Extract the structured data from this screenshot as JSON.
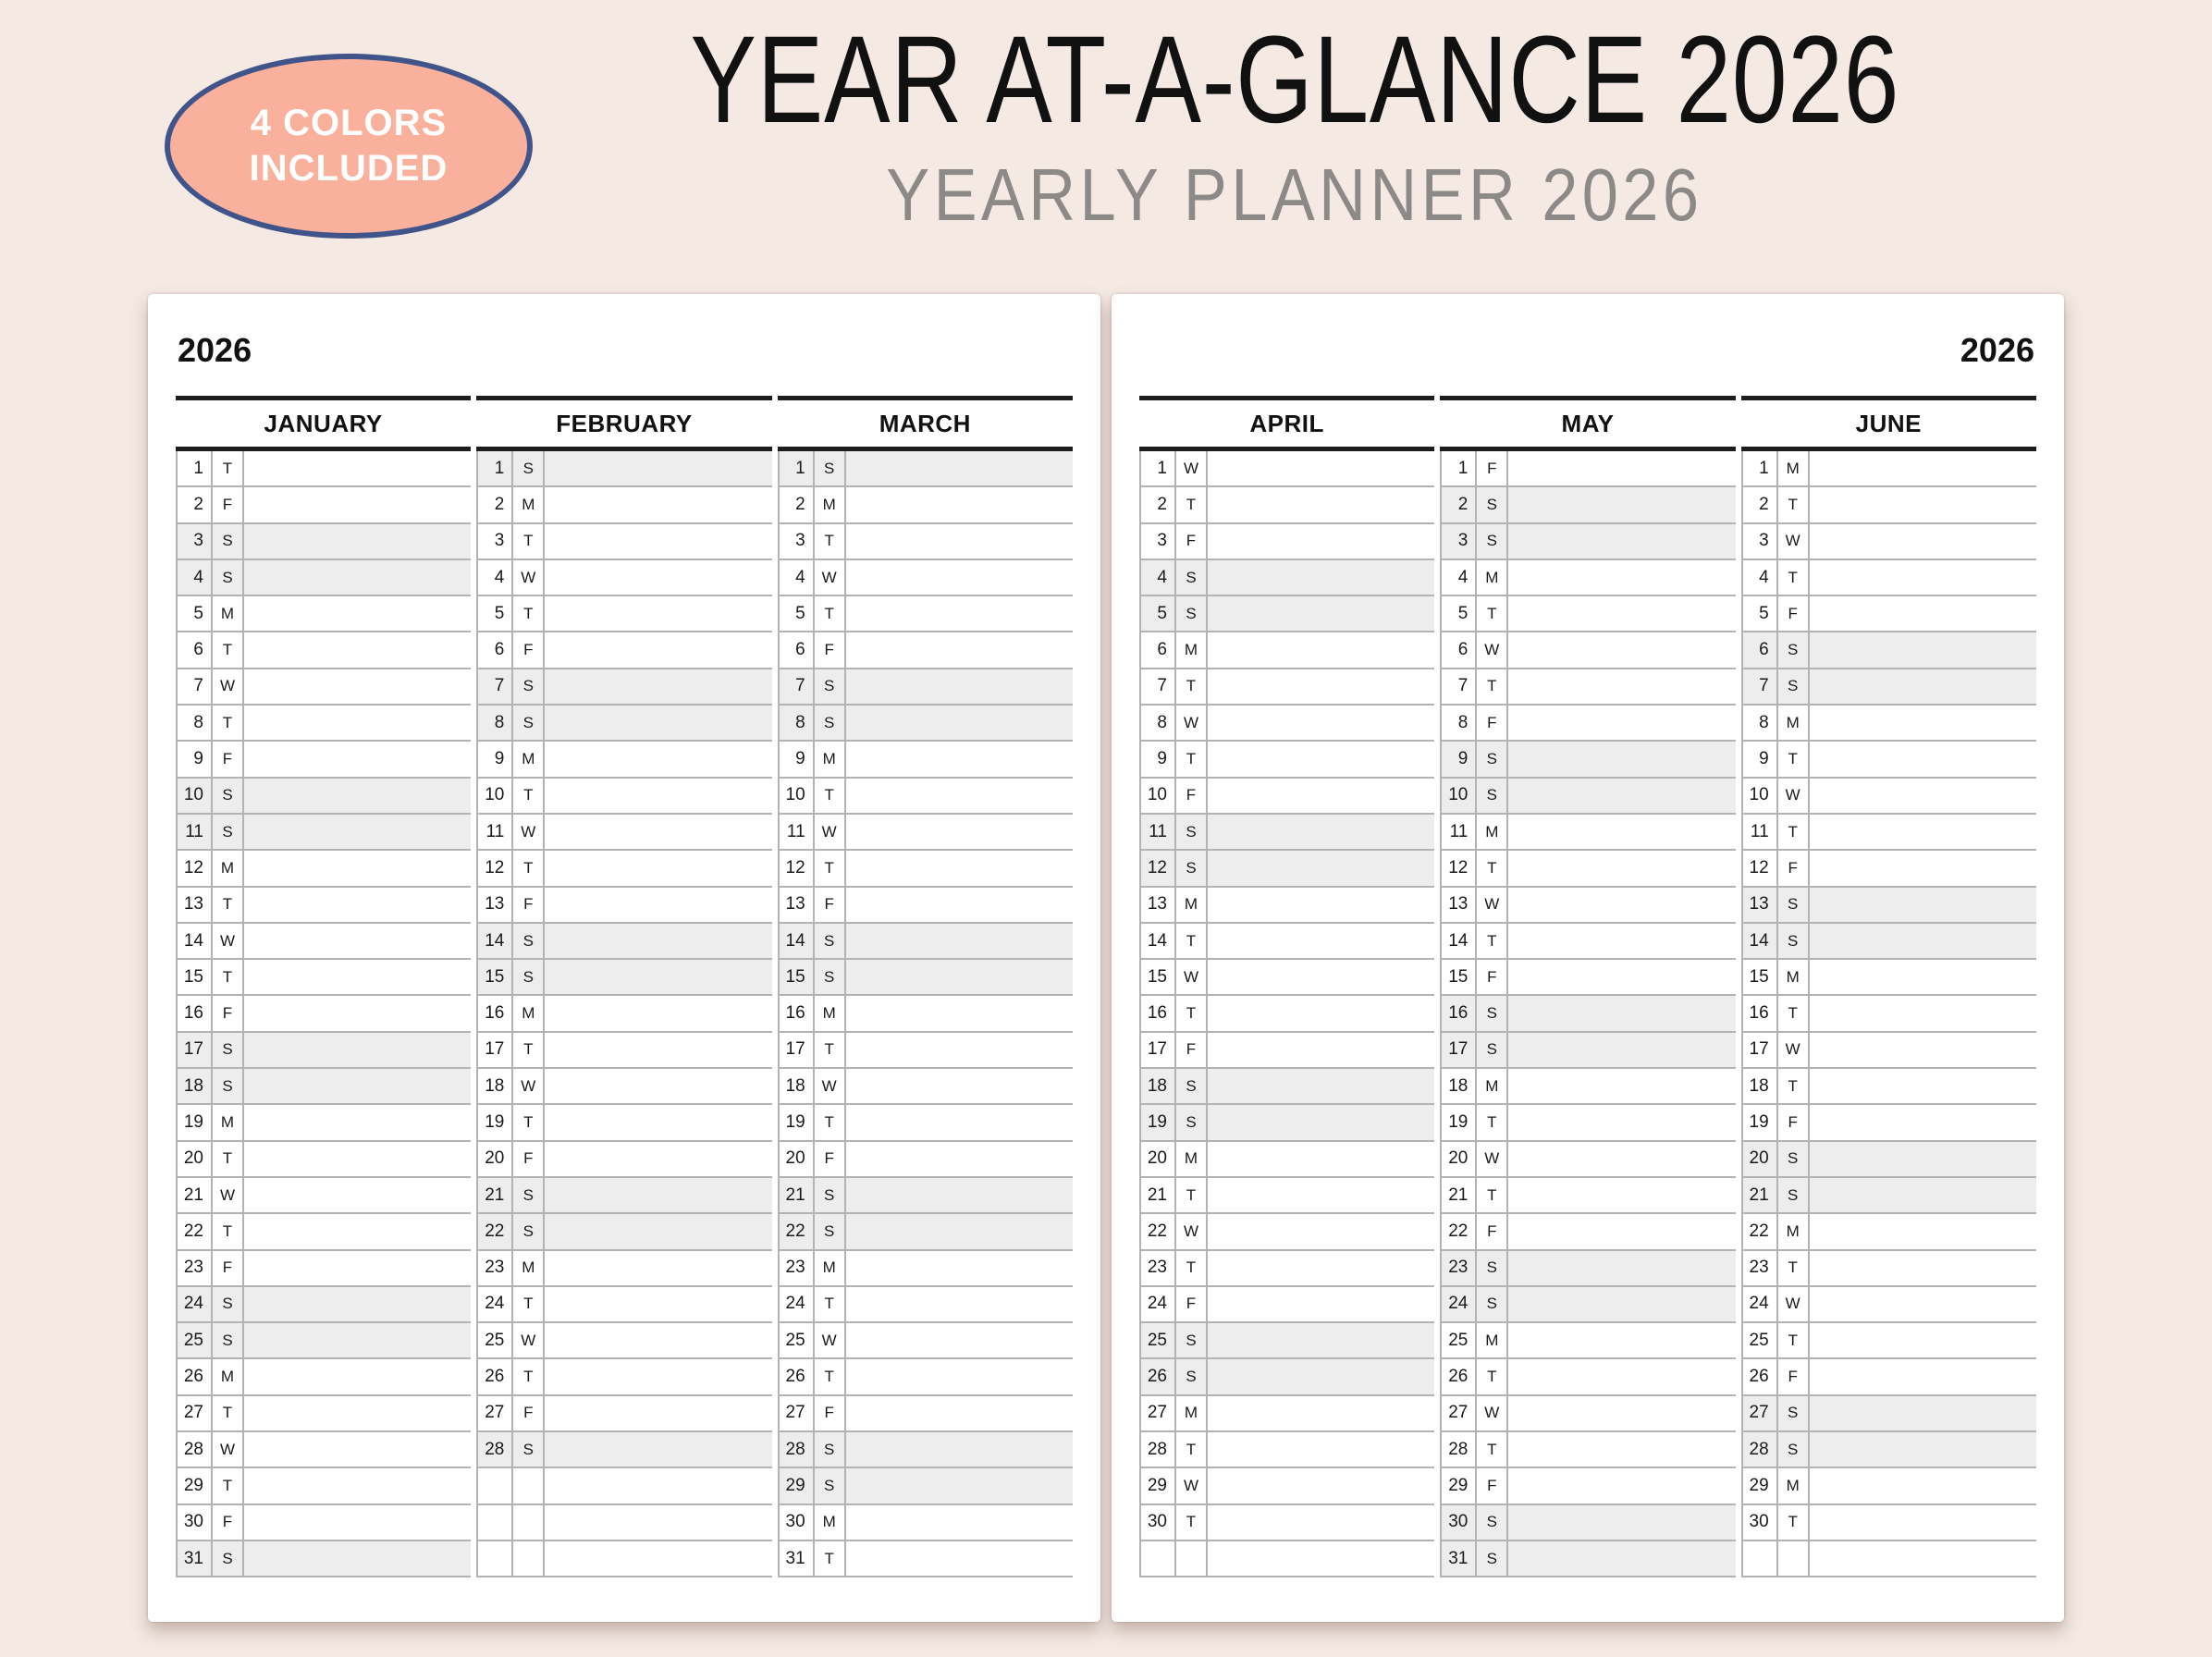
{
  "badge": {
    "line1": "4 COLORS",
    "line2": "INCLUDED"
  },
  "header": {
    "title": "YEAR AT-A-GLANCE 2026",
    "subtitle": "YEARLY PLANNER 2026"
  },
  "layout": {
    "rows_per_month": 31
  },
  "colors": {
    "background": "#f4e9e3",
    "page": "#ffffff",
    "badge_fill": "#f9b19d",
    "badge_border": "#41548a",
    "title": "#111111",
    "subtitle": "#8d8987",
    "weekend_shade": "#ededed",
    "grid_line": "#b3b3b3",
    "thick_line": "#1d1d1d"
  },
  "pages": [
    {
      "year": "2026",
      "year_align": "left",
      "months": [
        {
          "name": "JANUARY",
          "days": [
            [
              "1",
              "T"
            ],
            [
              "2",
              "F"
            ],
            [
              "3",
              "S"
            ],
            [
              "4",
              "S"
            ],
            [
              "5",
              "M"
            ],
            [
              "6",
              "T"
            ],
            [
              "7",
              "W"
            ],
            [
              "8",
              "T"
            ],
            [
              "9",
              "F"
            ],
            [
              "10",
              "S"
            ],
            [
              "11",
              "S"
            ],
            [
              "12",
              "M"
            ],
            [
              "13",
              "T"
            ],
            [
              "14",
              "W"
            ],
            [
              "15",
              "T"
            ],
            [
              "16",
              "F"
            ],
            [
              "17",
              "S"
            ],
            [
              "18",
              "S"
            ],
            [
              "19",
              "M"
            ],
            [
              "20",
              "T"
            ],
            [
              "21",
              "W"
            ],
            [
              "22",
              "T"
            ],
            [
              "23",
              "F"
            ],
            [
              "24",
              "S"
            ],
            [
              "25",
              "S"
            ],
            [
              "26",
              "M"
            ],
            [
              "27",
              "T"
            ],
            [
              "28",
              "W"
            ],
            [
              "29",
              "T"
            ],
            [
              "30",
              "F"
            ],
            [
              "31",
              "S"
            ]
          ]
        },
        {
          "name": "FEBRUARY",
          "days": [
            [
              "1",
              "S"
            ],
            [
              "2",
              "M"
            ],
            [
              "3",
              "T"
            ],
            [
              "4",
              "W"
            ],
            [
              "5",
              "T"
            ],
            [
              "6",
              "F"
            ],
            [
              "7",
              "S"
            ],
            [
              "8",
              "S"
            ],
            [
              "9",
              "M"
            ],
            [
              "10",
              "T"
            ],
            [
              "11",
              "W"
            ],
            [
              "12",
              "T"
            ],
            [
              "13",
              "F"
            ],
            [
              "14",
              "S"
            ],
            [
              "15",
              "S"
            ],
            [
              "16",
              "M"
            ],
            [
              "17",
              "T"
            ],
            [
              "18",
              "W"
            ],
            [
              "19",
              "T"
            ],
            [
              "20",
              "F"
            ],
            [
              "21",
              "S"
            ],
            [
              "22",
              "S"
            ],
            [
              "23",
              "M"
            ],
            [
              "24",
              "T"
            ],
            [
              "25",
              "W"
            ],
            [
              "26",
              "T"
            ],
            [
              "27",
              "F"
            ],
            [
              "28",
              "S"
            ]
          ]
        },
        {
          "name": "MARCH",
          "days": [
            [
              "1",
              "S"
            ],
            [
              "2",
              "M"
            ],
            [
              "3",
              "T"
            ],
            [
              "4",
              "W"
            ],
            [
              "5",
              "T"
            ],
            [
              "6",
              "F"
            ],
            [
              "7",
              "S"
            ],
            [
              "8",
              "S"
            ],
            [
              "9",
              "M"
            ],
            [
              "10",
              "T"
            ],
            [
              "11",
              "W"
            ],
            [
              "12",
              "T"
            ],
            [
              "13",
              "F"
            ],
            [
              "14",
              "S"
            ],
            [
              "15",
              "S"
            ],
            [
              "16",
              "M"
            ],
            [
              "17",
              "T"
            ],
            [
              "18",
              "W"
            ],
            [
              "19",
              "T"
            ],
            [
              "20",
              "F"
            ],
            [
              "21",
              "S"
            ],
            [
              "22",
              "S"
            ],
            [
              "23",
              "M"
            ],
            [
              "24",
              "T"
            ],
            [
              "25",
              "W"
            ],
            [
              "26",
              "T"
            ],
            [
              "27",
              "F"
            ],
            [
              "28",
              "S"
            ],
            [
              "29",
              "S"
            ],
            [
              "30",
              "M"
            ],
            [
              "31",
              "T"
            ]
          ]
        }
      ]
    },
    {
      "year": "2026",
      "year_align": "right",
      "months": [
        {
          "name": "APRIL",
          "days": [
            [
              "1",
              "W"
            ],
            [
              "2",
              "T"
            ],
            [
              "3",
              "F"
            ],
            [
              "4",
              "S"
            ],
            [
              "5",
              "S"
            ],
            [
              "6",
              "M"
            ],
            [
              "7",
              "T"
            ],
            [
              "8",
              "W"
            ],
            [
              "9",
              "T"
            ],
            [
              "10",
              "F"
            ],
            [
              "11",
              "S"
            ],
            [
              "12",
              "S"
            ],
            [
              "13",
              "M"
            ],
            [
              "14",
              "T"
            ],
            [
              "15",
              "W"
            ],
            [
              "16",
              "T"
            ],
            [
              "17",
              "F"
            ],
            [
              "18",
              "S"
            ],
            [
              "19",
              "S"
            ],
            [
              "20",
              "M"
            ],
            [
              "21",
              "T"
            ],
            [
              "22",
              "W"
            ],
            [
              "23",
              "T"
            ],
            [
              "24",
              "F"
            ],
            [
              "25",
              "S"
            ],
            [
              "26",
              "S"
            ],
            [
              "27",
              "M"
            ],
            [
              "28",
              "T"
            ],
            [
              "29",
              "W"
            ],
            [
              "30",
              "T"
            ]
          ]
        },
        {
          "name": "MAY",
          "days": [
            [
              "1",
              "F"
            ],
            [
              "2",
              "S"
            ],
            [
              "3",
              "S"
            ],
            [
              "4",
              "M"
            ],
            [
              "5",
              "T"
            ],
            [
              "6",
              "W"
            ],
            [
              "7",
              "T"
            ],
            [
              "8",
              "F"
            ],
            [
              "9",
              "S"
            ],
            [
              "10",
              "S"
            ],
            [
              "11",
              "M"
            ],
            [
              "12",
              "T"
            ],
            [
              "13",
              "W"
            ],
            [
              "14",
              "T"
            ],
            [
              "15",
              "F"
            ],
            [
              "16",
              "S"
            ],
            [
              "17",
              "S"
            ],
            [
              "18",
              "M"
            ],
            [
              "19",
              "T"
            ],
            [
              "20",
              "W"
            ],
            [
              "21",
              "T"
            ],
            [
              "22",
              "F"
            ],
            [
              "23",
              "S"
            ],
            [
              "24",
              "S"
            ],
            [
              "25",
              "M"
            ],
            [
              "26",
              "T"
            ],
            [
              "27",
              "W"
            ],
            [
              "28",
              "T"
            ],
            [
              "29",
              "F"
            ],
            [
              "30",
              "S"
            ],
            [
              "31",
              "S"
            ]
          ]
        },
        {
          "name": "JUNE",
          "days": [
            [
              "1",
              "M"
            ],
            [
              "2",
              "T"
            ],
            [
              "3",
              "W"
            ],
            [
              "4",
              "T"
            ],
            [
              "5",
              "F"
            ],
            [
              "6",
              "S"
            ],
            [
              "7",
              "S"
            ],
            [
              "8",
              "M"
            ],
            [
              "9",
              "T"
            ],
            [
              "10",
              "W"
            ],
            [
              "11",
              "T"
            ],
            [
              "12",
              "F"
            ],
            [
              "13",
              "S"
            ],
            [
              "14",
              "S"
            ],
            [
              "15",
              "M"
            ],
            [
              "16",
              "T"
            ],
            [
              "17",
              "W"
            ],
            [
              "18",
              "T"
            ],
            [
              "19",
              "F"
            ],
            [
              "20",
              "S"
            ],
            [
              "21",
              "S"
            ],
            [
              "22",
              "M"
            ],
            [
              "23",
              "T"
            ],
            [
              "24",
              "W"
            ],
            [
              "25",
              "T"
            ],
            [
              "26",
              "F"
            ],
            [
              "27",
              "S"
            ],
            [
              "28",
              "S"
            ],
            [
              "29",
              "M"
            ],
            [
              "30",
              "T"
            ]
          ]
        }
      ]
    }
  ]
}
